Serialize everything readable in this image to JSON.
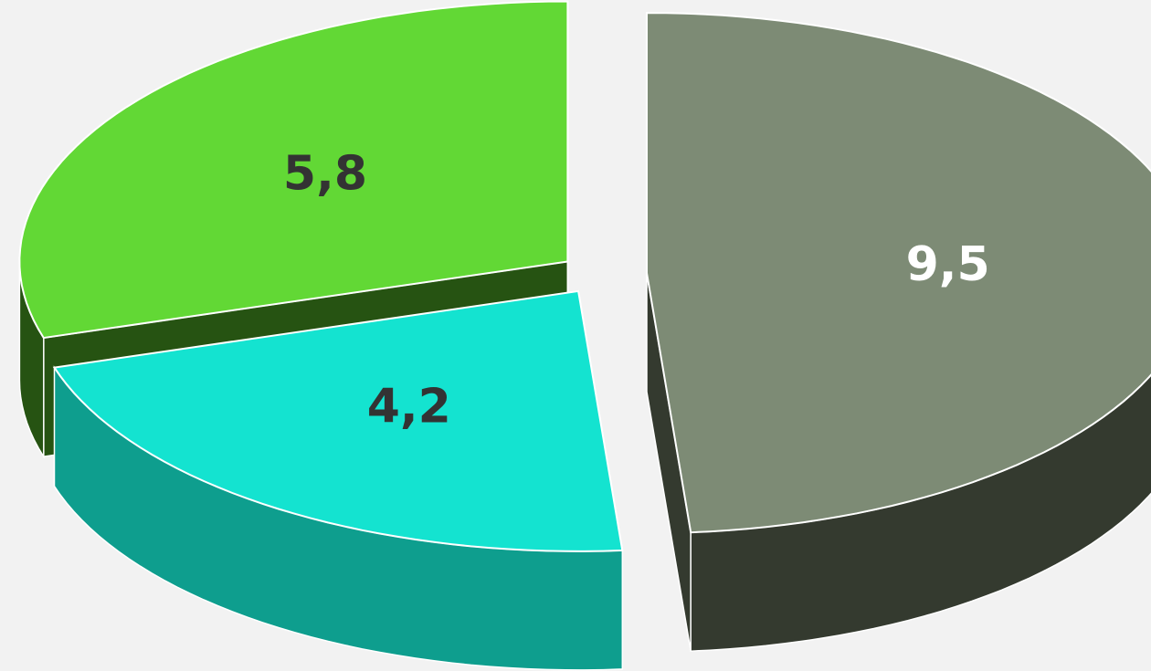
{
  "chart_data": {
    "type": "pie",
    "values": [
      9.5,
      4.2,
      5.8
    ],
    "value_labels": [
      "9,5",
      "4,2",
      "5,8"
    ],
    "colors": [
      "#7d8b75",
      "#14e3d0",
      "#62d835"
    ],
    "side_colors": [
      "#343a2f",
      "#0e9e8e",
      "#265312"
    ],
    "label_colors": [
      "#ffffff",
      "#333333",
      "#333333"
    ]
  }
}
